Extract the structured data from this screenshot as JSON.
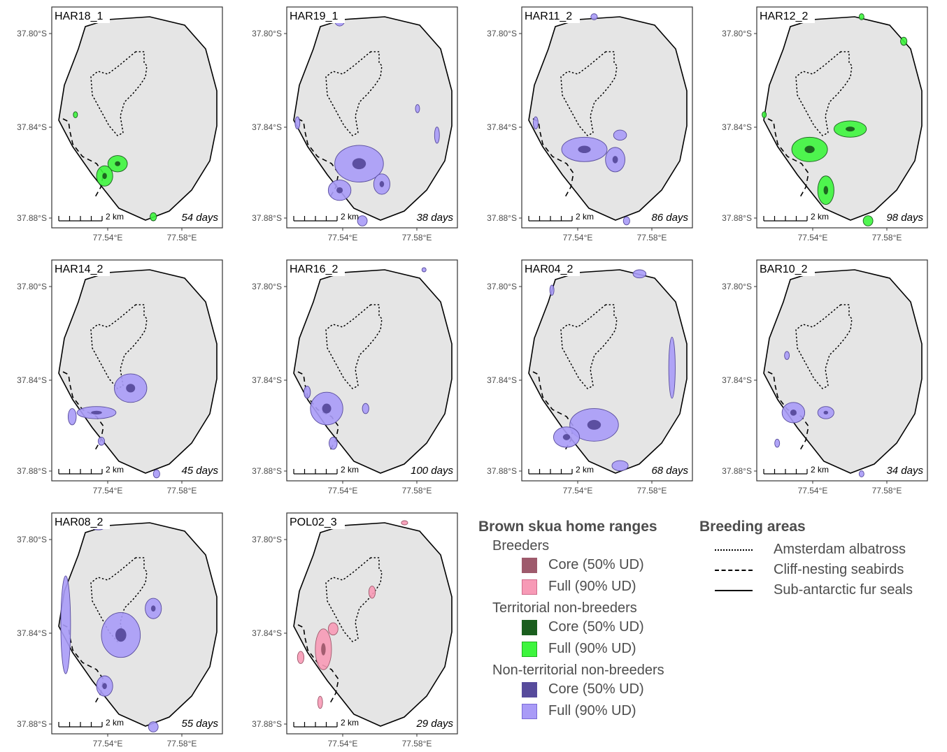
{
  "axes": {
    "y_ticks": [
      "37.80°S",
      "37.84°S",
      "37.88°S"
    ],
    "x_ticks": [
      "77.54°E",
      "77.58°E"
    ],
    "scalebar_label": "2 km"
  },
  "colors": {
    "island_fill": "#e5e5e5",
    "breeder_core": "#9e5a6c",
    "breeder_full": "#f79ab6",
    "territorial_core": "#1a5e1e",
    "territorial_full": "#3df53d",
    "nonterritorial_core": "#574b9c",
    "nonterritorial_full": "#a99bf7"
  },
  "chart_data": [
    {
      "type": "map",
      "id": "HAR18_1",
      "days": "54 days",
      "status": "territorial",
      "blobs": [
        [
          0.38,
          0.72,
          0.12,
          0.08
        ],
        [
          0.3,
          0.78,
          0.1,
          0.1
        ],
        [
          0.6,
          0.98,
          0.04,
          0.04
        ],
        [
          0.12,
          0.48,
          0.02,
          0.03
        ],
        [
          0.24,
          0.02,
          0.02,
          0.02
        ]
      ]
    },
    {
      "type": "map",
      "id": "HAR19_1",
      "days": "38 days",
      "status": "nonterritorial",
      "blobs": [
        [
          0.42,
          0.72,
          0.3,
          0.18
        ],
        [
          0.3,
          0.85,
          0.14,
          0.1
        ],
        [
          0.56,
          0.82,
          0.1,
          0.1
        ],
        [
          0.3,
          0.02,
          0.06,
          0.05
        ],
        [
          0.04,
          0.52,
          0.03,
          0.06
        ],
        [
          0.9,
          0.58,
          0.03,
          0.08
        ],
        [
          0.78,
          0.45,
          0.02,
          0.04
        ],
        [
          0.44,
          1.0,
          0.06,
          0.05
        ]
      ]
    },
    {
      "type": "map",
      "id": "HAR11_2",
      "days": "86 days",
      "status": "nonterritorial",
      "blobs": [
        [
          0.36,
          0.65,
          0.28,
          0.12
        ],
        [
          0.55,
          0.7,
          0.12,
          0.12
        ],
        [
          0.58,
          0.58,
          0.08,
          0.05
        ],
        [
          0.06,
          0.52,
          0.03,
          0.06
        ],
        [
          0.42,
          0.0,
          0.04,
          0.03
        ],
        [
          0.62,
          1.0,
          0.04,
          0.04
        ]
      ]
    },
    {
      "type": "map",
      "id": "HAR12_2",
      "days": "98 days",
      "status": "territorial",
      "blobs": [
        [
          0.3,
          0.65,
          0.22,
          0.12
        ],
        [
          0.55,
          0.55,
          0.2,
          0.08
        ],
        [
          0.4,
          0.85,
          0.1,
          0.14
        ],
        [
          0.66,
          1.0,
          0.06,
          0.05
        ],
        [
          0.88,
          0.12,
          0.04,
          0.04
        ],
        [
          0.62,
          0.0,
          0.03,
          0.03
        ],
        [
          0.02,
          0.48,
          0.02,
          0.03
        ]
      ]
    },
    {
      "type": "map",
      "id": "HAR14_2",
      "days": "45 days",
      "status": "nonterritorial",
      "blobs": [
        [
          0.46,
          0.58,
          0.2,
          0.14
        ],
        [
          0.25,
          0.7,
          0.24,
          0.06
        ],
        [
          0.1,
          0.72,
          0.05,
          0.08
        ],
        [
          0.28,
          0.84,
          0.04,
          0.04
        ],
        [
          0.62,
          1.0,
          0.04,
          0.04
        ]
      ]
    },
    {
      "type": "map",
      "id": "HAR16_2",
      "days": "100 days",
      "status": "nonterritorial",
      "blobs": [
        [
          0.22,
          0.68,
          0.2,
          0.16
        ],
        [
          0.1,
          0.6,
          0.04,
          0.06
        ],
        [
          0.26,
          0.85,
          0.05,
          0.06
        ],
        [
          0.46,
          0.68,
          0.04,
          0.05
        ],
        [
          0.82,
          0.0,
          0.02,
          0.02
        ]
      ]
    },
    {
      "type": "map",
      "id": "HAR04_2",
      "days": "68 days",
      "status": "nonterritorial",
      "blobs": [
        [
          0.42,
          0.76,
          0.3,
          0.16
        ],
        [
          0.25,
          0.82,
          0.16,
          0.1
        ],
        [
          0.58,
          0.96,
          0.1,
          0.05
        ],
        [
          0.9,
          0.48,
          0.04,
          0.3
        ],
        [
          0.7,
          0.02,
          0.08,
          0.04
        ],
        [
          0.16,
          0.1,
          0.02,
          0.05
        ]
      ]
    },
    {
      "type": "map",
      "id": "BAR10_2",
      "days": "34 days",
      "status": "nonterritorial",
      "blobs": [
        [
          0.2,
          0.7,
          0.14,
          0.1
        ],
        [
          0.4,
          0.7,
          0.1,
          0.06
        ],
        [
          0.1,
          0.85,
          0.03,
          0.04
        ],
        [
          0.16,
          0.42,
          0.03,
          0.04
        ],
        [
          0.62,
          1.0,
          0.03,
          0.03
        ]
      ]
    },
    {
      "type": "map",
      "id": "HAR08_2",
      "days": "55 days",
      "status": "nonterritorial",
      "blobs": [
        [
          0.06,
          0.5,
          0.06,
          0.48
        ],
        [
          0.4,
          0.55,
          0.24,
          0.22
        ],
        [
          0.6,
          0.42,
          0.1,
          0.1
        ],
        [
          0.3,
          0.8,
          0.1,
          0.1
        ],
        [
          0.6,
          1.0,
          0.06,
          0.05
        ],
        [
          0.26,
          0.02,
          0.08,
          0.03
        ]
      ]
    },
    {
      "type": "map",
      "id": "POL02_3",
      "days": "29 days",
      "status": "breeder",
      "blobs": [
        [
          0.2,
          0.62,
          0.1,
          0.2
        ],
        [
          0.26,
          0.52,
          0.06,
          0.06
        ],
        [
          0.06,
          0.66,
          0.04,
          0.06
        ],
        [
          0.7,
          0.0,
          0.04,
          0.02
        ],
        [
          0.5,
          0.34,
          0.04,
          0.06
        ],
        [
          0.18,
          0.88,
          0.03,
          0.06
        ]
      ]
    }
  ],
  "legend": {
    "home_ranges_title": "Brown skua home ranges",
    "groups": [
      {
        "label": "Breeders",
        "core": "Core (50% UD)",
        "full": "Full (90% UD)"
      },
      {
        "label": "Territorial non-breeders",
        "core": "Core (50% UD)",
        "full": "Full (90% UD)"
      },
      {
        "label": "Non-territorial non-breeders",
        "core": "Core (50% UD)",
        "full": "Full (90% UD)"
      }
    ],
    "breeding_title": "Breeding areas",
    "breeding": [
      "Amsterdam albatross",
      "Cliff-nesting seabirds",
      "Sub-antarctic fur seals"
    ]
  }
}
